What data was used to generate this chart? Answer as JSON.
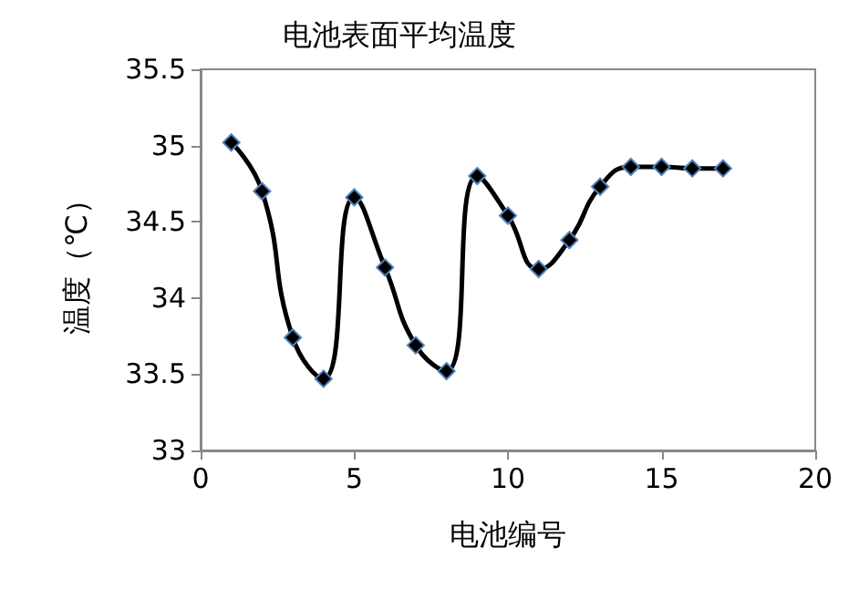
{
  "chart_data": {
    "type": "line",
    "title": "电池表面平均温度",
    "xlabel": "电池编号",
    "ylabel": "温度（℃）",
    "x": [
      1,
      2,
      3,
      4,
      5,
      6,
      7,
      8,
      9,
      10,
      11,
      12,
      13,
      14,
      15,
      16,
      17
    ],
    "series": [
      {
        "color": "#000000",
        "values": [
          35.02,
          34.7,
          33.74,
          33.47,
          34.66,
          34.2,
          33.69,
          33.52,
          34.8,
          34.54,
          34.19,
          34.38,
          34.73,
          34.86,
          34.86,
          34.85,
          34.85
        ]
      }
    ],
    "xlim": [
      0,
      20
    ],
    "xticks": [
      0,
      5,
      10,
      15,
      20
    ],
    "ylim": [
      33,
      35.5
    ],
    "yticks": [
      33,
      33.5,
      34,
      34.5,
      35,
      35.5
    ],
    "grid": false,
    "marker": "diamond",
    "line_style": "solid"
  }
}
